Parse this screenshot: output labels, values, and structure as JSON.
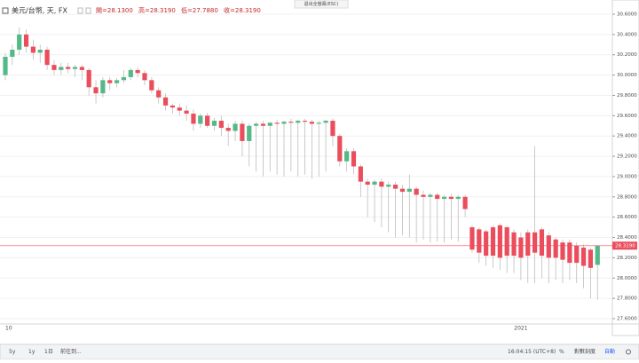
{
  "chart_data": {
    "type": "candlestick",
    "symbol": "美元/台幣, 天, FX",
    "ohlc_labels": [
      "開=28.1300",
      "高=28.3190",
      "低=27.7880",
      "收=28.3190"
    ],
    "exit_hint": "退出全螢幕(ESC)",
    "toolbar": {
      "ranges": [
        "5y",
        "1y",
        "1日"
      ],
      "goto": "前往到...",
      "time": "16:04:15 (UTC+8)",
      "percent": "%",
      "log": "對數刻度",
      "auto": "自動"
    },
    "up_color": "#53b987",
    "down_color": "#eb4d5c",
    "wick_color": "#bdbdbd",
    "categories": [
      "10",
      null,
      null,
      null,
      null,
      null,
      null,
      null,
      null,
      null,
      null,
      null,
      null,
      null,
      null,
      null,
      null,
      null,
      null,
      null,
      null,
      null,
      null,
      null,
      null,
      null,
      null,
      null,
      null,
      null,
      null,
      null,
      null,
      null,
      null,
      null,
      null,
      null,
      null,
      null,
      null,
      null,
      null,
      null,
      null,
      null,
      null,
      null,
      null,
      null,
      null,
      null,
      null,
      null,
      null,
      null,
      null,
      null,
      null,
      null,
      null,
      null,
      null,
      null,
      null,
      null,
      null,
      null,
      null,
      null,
      null,
      null,
      null,
      null,
      "2021",
      null,
      null,
      null,
      null,
      null,
      null,
      null,
      null,
      null,
      null,
      null
    ],
    "ohlc": [
      [
        30.0,
        30.22,
        29.95,
        30.18
      ],
      [
        30.18,
        30.3,
        30.1,
        30.25
      ],
      [
        30.25,
        30.47,
        30.2,
        30.4
      ],
      [
        30.4,
        30.45,
        30.22,
        30.28
      ],
      [
        30.28,
        30.35,
        30.15,
        30.22
      ],
      [
        30.22,
        30.3,
        30.12,
        30.25
      ],
      [
        30.25,
        30.28,
        30.05,
        30.1
      ],
      [
        30.1,
        30.15,
        30.0,
        30.05
      ],
      [
        30.05,
        30.12,
        30.0,
        30.08
      ],
      [
        30.08,
        30.12,
        30.02,
        30.06
      ],
      [
        30.06,
        30.1,
        29.98,
        30.08
      ],
      [
        30.08,
        30.1,
        29.95,
        30.05
      ],
      [
        30.05,
        30.07,
        29.8,
        29.88
      ],
      [
        29.88,
        29.95,
        29.72,
        29.82
      ],
      [
        29.82,
        29.98,
        29.78,
        29.95
      ],
      [
        29.95,
        29.98,
        29.85,
        29.92
      ],
      [
        29.92,
        29.97,
        29.88,
        29.95
      ],
      [
        29.95,
        30.05,
        29.92,
        29.98
      ],
      [
        29.98,
        30.07,
        29.95,
        30.05
      ],
      [
        30.05,
        30.08,
        29.98,
        30.02
      ],
      [
        30.02,
        30.05,
        29.9,
        29.95
      ],
      [
        29.95,
        29.98,
        29.82,
        29.85
      ],
      [
        29.85,
        29.88,
        29.72,
        29.78
      ],
      [
        29.78,
        29.82,
        29.65,
        29.7
      ],
      [
        29.7,
        29.72,
        29.62,
        29.68
      ],
      [
        29.68,
        29.72,
        29.6,
        29.65
      ],
      [
        29.65,
        29.7,
        29.55,
        29.62
      ],
      [
        29.62,
        29.66,
        29.45,
        29.52
      ],
      [
        29.52,
        29.62,
        29.48,
        29.6
      ],
      [
        29.6,
        29.63,
        29.48,
        29.5
      ],
      [
        29.5,
        29.58,
        29.45,
        29.55
      ],
      [
        29.55,
        29.6,
        29.4,
        29.48
      ],
      [
        29.48,
        29.52,
        29.3,
        29.45
      ],
      [
        29.45,
        29.55,
        29.35,
        29.52
      ],
      [
        29.52,
        29.55,
        29.2,
        29.35
      ],
      [
        29.35,
        29.52,
        29.1,
        29.5
      ],
      [
        29.5,
        29.54,
        29.05,
        29.52
      ],
      [
        29.52,
        29.55,
        29.0,
        29.5
      ],
      [
        29.5,
        29.54,
        29.05,
        29.53
      ],
      [
        29.53,
        29.56,
        29.02,
        29.52
      ],
      [
        29.52,
        29.55,
        29.0,
        29.54
      ],
      [
        29.54,
        29.57,
        29.05,
        29.53
      ],
      [
        29.53,
        29.56,
        29.0,
        29.55
      ],
      [
        29.55,
        29.57,
        29.02,
        29.54
      ],
      [
        29.54,
        29.56,
        28.98,
        29.52
      ],
      [
        29.52,
        29.55,
        29.0,
        29.53
      ],
      [
        29.53,
        29.56,
        29.05,
        29.55
      ],
      [
        29.55,
        29.57,
        29.3,
        29.4
      ],
      [
        29.4,
        29.42,
        29.1,
        29.15
      ],
      [
        29.15,
        29.28,
        29.05,
        29.25
      ],
      [
        29.25,
        29.28,
        29.02,
        29.1
      ],
      [
        29.1,
        29.12,
        28.8,
        28.95
      ],
      [
        28.95,
        28.98,
        28.6,
        28.92
      ],
      [
        28.92,
        28.97,
        28.55,
        28.95
      ],
      [
        28.95,
        28.98,
        28.5,
        28.9
      ],
      [
        28.9,
        28.95,
        28.45,
        28.92
      ],
      [
        28.92,
        28.95,
        28.4,
        28.88
      ],
      [
        28.88,
        28.92,
        28.42,
        28.85
      ],
      [
        28.85,
        29.02,
        28.4,
        28.88
      ],
      [
        28.88,
        28.9,
        28.35,
        28.82
      ],
      [
        28.82,
        28.86,
        28.38,
        28.8
      ],
      [
        28.8,
        28.84,
        28.35,
        28.82
      ],
      [
        28.82,
        28.84,
        28.36,
        28.78
      ],
      [
        28.78,
        28.82,
        28.35,
        28.8
      ],
      [
        28.8,
        28.83,
        28.38,
        28.78
      ],
      [
        28.78,
        28.82,
        28.36,
        28.8
      ],
      [
        28.8,
        28.82,
        28.6,
        28.68
      ],
      [
        28.5,
        28.52,
        28.25,
        28.28
      ],
      [
        28.48,
        28.5,
        28.15,
        28.25
      ],
      [
        28.46,
        28.48,
        28.12,
        28.22
      ],
      [
        28.5,
        28.52,
        28.1,
        28.22
      ],
      [
        28.52,
        28.54,
        28.08,
        28.2
      ],
      [
        28.5,
        28.52,
        28.05,
        28.22
      ],
      [
        28.45,
        28.48,
        28.05,
        28.22
      ],
      [
        28.4,
        28.45,
        27.98,
        28.2
      ],
      [
        28.45,
        28.48,
        27.95,
        28.22
      ],
      [
        28.45,
        29.3,
        27.95,
        28.25
      ],
      [
        28.48,
        28.5,
        28.0,
        28.22
      ],
      [
        28.42,
        28.45,
        27.95,
        28.2
      ],
      [
        28.38,
        28.4,
        27.98,
        28.2
      ],
      [
        28.35,
        28.38,
        27.95,
        28.18
      ],
      [
        28.35,
        28.38,
        27.98,
        28.15
      ],
      [
        28.32,
        28.35,
        27.95,
        28.15
      ],
      [
        28.3,
        28.33,
        27.9,
        28.12
      ],
      [
        28.28,
        28.3,
        27.8,
        28.1
      ],
      [
        28.13,
        28.319,
        27.788,
        28.319
      ]
    ],
    "last_price": {
      "value": 28.319,
      "label": "28.3190"
    },
    "ylim": [
      27.6,
      30.6
    ],
    "yticks": [
      {
        "value": 27.6,
        "label": "27.6000"
      },
      {
        "value": 27.8,
        "label": "27.8000"
      },
      {
        "value": 28.0,
        "label": "28.0000"
      },
      {
        "value": 28.2,
        "label": "28.2000"
      },
      {
        "value": 28.4,
        "label": "28.4000"
      },
      {
        "value": 28.6,
        "label": "28.6000"
      },
      {
        "value": 28.8,
        "label": "28.8000"
      },
      {
        "value": 29.0,
        "label": "29.0000"
      },
      {
        "value": 29.2,
        "label": "29.2000"
      },
      {
        "value": 29.4,
        "label": "29.4000"
      },
      {
        "value": 29.6,
        "label": "29.6000"
      },
      {
        "value": 29.8,
        "label": "29.8000"
      },
      {
        "value": 30.0,
        "label": "30.0000"
      },
      {
        "value": 30.2,
        "label": "30.2000"
      },
      {
        "value": 30.4,
        "label": "30.4000"
      },
      {
        "value": 30.6,
        "label": "30.6000"
      }
    ],
    "grid": true
  }
}
